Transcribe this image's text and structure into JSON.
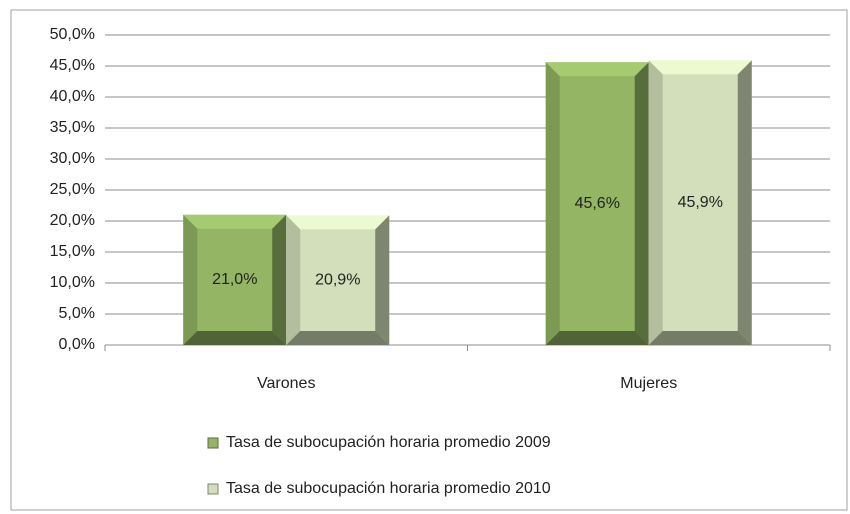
{
  "chart_data": {
    "type": "bar",
    "categories": [
      "Varones",
      "Mujeres"
    ],
    "series": [
      {
        "name": "Tasa de subocupación horaria promedio 2009",
        "color": "#93b564",
        "values": [
          21.0,
          45.6
        ],
        "value_labels": [
          "21,0%",
          "45,6%"
        ]
      },
      {
        "name": "Tasa de subocupación horaria promedio 2010",
        "color": "#d3dfbb",
        "values": [
          20.9,
          45.9
        ],
        "value_labels": [
          "20,9%",
          "45,9%"
        ]
      }
    ],
    "ylim": [
      0,
      50
    ],
    "yticks": [
      {
        "value": 0,
        "label": "0,0%"
      },
      {
        "value": 5,
        "label": "5,0%"
      },
      {
        "value": 10,
        "label": "10,0%"
      },
      {
        "value": 15,
        "label": "15,0%"
      },
      {
        "value": 20,
        "label": "20,0%"
      },
      {
        "value": 25,
        "label": "25,0%"
      },
      {
        "value": 30,
        "label": "30,0%"
      },
      {
        "value": 35,
        "label": "35,0%"
      },
      {
        "value": 40,
        "label": "40,0%"
      },
      {
        "value": 45,
        "label": "45,0%"
      },
      {
        "value": 50,
        "label": "50,0%"
      }
    ],
    "grid": true,
    "legend": "bottom"
  }
}
